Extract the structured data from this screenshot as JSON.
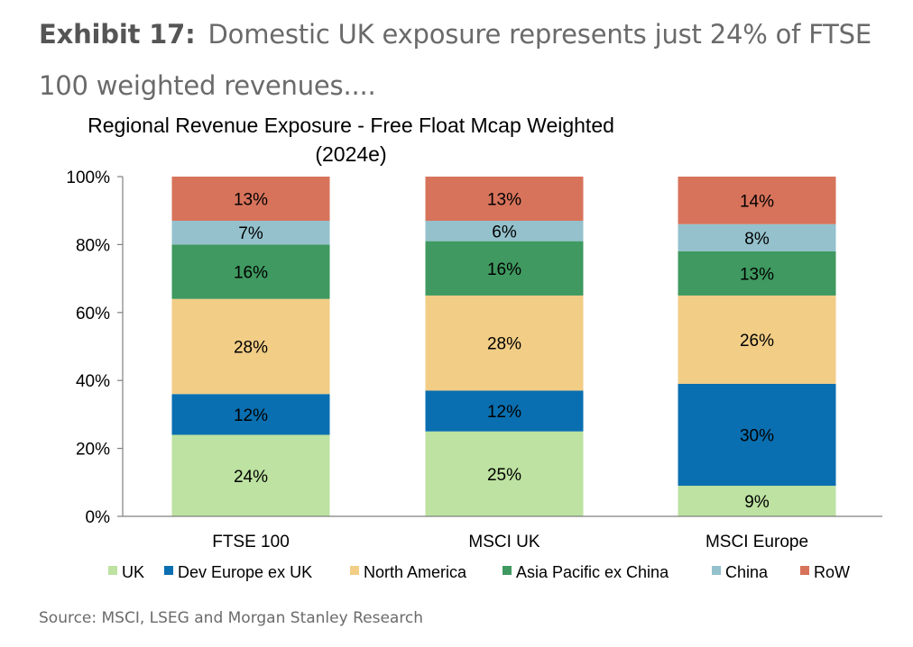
{
  "exhibit": {
    "label": "Exhibit 17:",
    "title": "Domestic UK exposure represents just 24% of FTSE 100 weighted revenues...."
  },
  "source": "Source: MSCI, LSEG and Morgan Stanley Research",
  "chart_data": {
    "type": "bar",
    "stacked": true,
    "title": "Regional Revenue Exposure - Free Float Mcap Weighted",
    "subtitle": "(2024e)",
    "categories": [
      "FTSE 100",
      "MSCI UK",
      "MSCI Europe"
    ],
    "ylim": [
      0,
      100
    ],
    "yticks": [
      "0%",
      "20%",
      "40%",
      "60%",
      "80%",
      "100%"
    ],
    "ytick_values": [
      0,
      20,
      40,
      60,
      80,
      100
    ],
    "legend_position": "bottom",
    "grid": false,
    "series": [
      {
        "name": "UK",
        "color": "#bde2a1",
        "values": [
          24,
          25,
          9
        ],
        "labels": [
          "24%",
          "25%",
          "9%"
        ]
      },
      {
        "name": "Dev Europe ex UK",
        "color": "#0a6fb0",
        "values": [
          12,
          12,
          30
        ],
        "labels": [
          "12%",
          "12%",
          "30%"
        ]
      },
      {
        "name": "North America",
        "color": "#f2cd86",
        "values": [
          28,
          28,
          26
        ],
        "labels": [
          "28%",
          "28%",
          "26%"
        ]
      },
      {
        "name": "Asia Pacific ex China",
        "color": "#3f9960",
        "values": [
          16,
          16,
          13
        ],
        "labels": [
          "16%",
          "16%",
          "13%"
        ]
      },
      {
        "name": "China",
        "color": "#94c1cc",
        "values": [
          7,
          6,
          8
        ],
        "labels": [
          "7%",
          "6%",
          "8%"
        ]
      },
      {
        "name": "RoW",
        "color": "#d7735b",
        "values": [
          13,
          13,
          14
        ],
        "labels": [
          "13%",
          "13%",
          "14%"
        ]
      }
    ]
  }
}
